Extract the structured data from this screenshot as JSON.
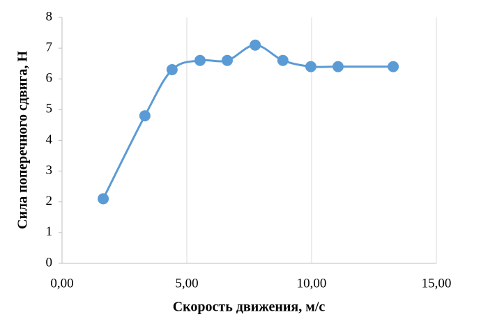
{
  "chart_data": {
    "type": "scatter",
    "x_label": "Скорость движения, м/с",
    "y_label": "Сила поперечного сдвига, Н",
    "series": [
      {
        "name": "Сила поперечного сдвига",
        "color": "#5b9bd5",
        "x": [
          1.65,
          3.32,
          4.41,
          5.53,
          6.62,
          7.74,
          8.85,
          9.97,
          11.06,
          13.27
        ],
        "values": [
          2.1,
          4.8,
          6.3,
          6.6,
          6.6,
          7.1,
          6.6,
          6.4,
          6.4,
          6.4
        ]
      }
    ],
    "smooth": true,
    "xlim": [
      0,
      15
    ],
    "xticks": [
      {
        "value": 0,
        "label": "0,00"
      },
      {
        "value": 5,
        "label": "5,00"
      },
      {
        "value": 10,
        "label": "10,00"
      },
      {
        "value": 15,
        "label": "15,00"
      }
    ],
    "ylim": [
      0,
      8
    ],
    "yticks": [
      0,
      1,
      2,
      3,
      4,
      5,
      6,
      7,
      8
    ],
    "grid": "x"
  }
}
